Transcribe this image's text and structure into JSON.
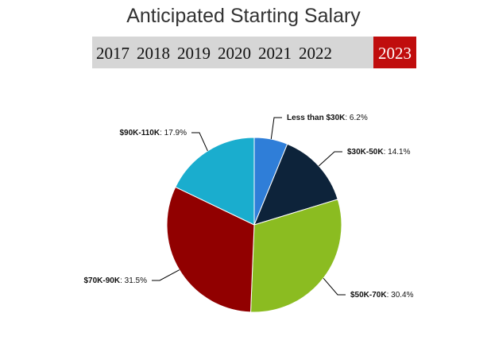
{
  "title": "Anticipated Starting Salary",
  "years": [
    {
      "label": "2017",
      "active": false
    },
    {
      "label": "2018",
      "active": false
    },
    {
      "label": "2019",
      "active": false
    },
    {
      "label": "2020",
      "active": false
    },
    {
      "label": "2021",
      "active": false
    },
    {
      "label": "2022",
      "active": false
    },
    {
      "label": "2023",
      "active": true
    }
  ],
  "chart_data": {
    "type": "pie",
    "title": "Anticipated Starting Salary",
    "selected_year": "2023",
    "slices": [
      {
        "label": "Less than $30K",
        "value": 6.2,
        "display": "6.2%",
        "color": "#2f7ed8"
      },
      {
        "label": "$30K-50K",
        "value": 14.1,
        "display": "14.1%",
        "color": "#0d233a"
      },
      {
        "label": "$50K-70K",
        "value": 30.4,
        "display": "30.4%",
        "color": "#8bbc21"
      },
      {
        "label": "$70K-90K",
        "value": 31.5,
        "display": "31.5%",
        "color": "#910000"
      },
      {
        "label": "$90K-110K",
        "value": 17.9,
        "display": "17.9%",
        "color": "#1aadce"
      }
    ]
  }
}
